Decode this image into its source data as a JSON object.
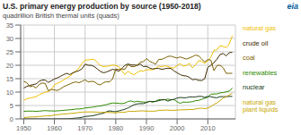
{
  "chart_data": {
    "type": "line",
    "title": "U.S. primary energy production by source (1950-2018)",
    "subtitle": "quadrillion British thermal units (quads)",
    "annotations": [
      "eia"
    ],
    "x": [
      1950,
      1951,
      1952,
      1953,
      1954,
      1955,
      1956,
      1957,
      1958,
      1959,
      1960,
      1961,
      1962,
      1963,
      1964,
      1965,
      1966,
      1967,
      1968,
      1969,
      1970,
      1971,
      1972,
      1973,
      1974,
      1975,
      1976,
      1977,
      1978,
      1979,
      1980,
      1981,
      1982,
      1983,
      1984,
      1985,
      1986,
      1987,
      1988,
      1989,
      1990,
      1991,
      1992,
      1993,
      1994,
      1995,
      1996,
      1997,
      1998,
      1999,
      2000,
      2001,
      2002,
      2003,
      2004,
      2005,
      2006,
      2007,
      2008,
      2009,
      2010,
      2011,
      2012,
      2013,
      2014,
      2015,
      2016,
      2017,
      2018
    ],
    "series": [
      {
        "name": "natural gas",
        "color": "#f0c000",
        "values": [
          6.97,
          7.5,
          7.8,
          8.0,
          8.3,
          9.0,
          9.5,
          10.0,
          10.2,
          11.0,
          12.66,
          13.3,
          13.8,
          14.5,
          15.3,
          15.8,
          17.0,
          17.9,
          19.0,
          20.7,
          21.9,
          22.0,
          22.2,
          22.2,
          21.0,
          19.9,
          19.5,
          19.6,
          19.8,
          20.1,
          19.9,
          19.5,
          18.0,
          16.5,
          17.8,
          16.9,
          16.5,
          17.3,
          18.0,
          17.8,
          18.4,
          18.3,
          18.4,
          18.8,
          19.7,
          19.5,
          19.8,
          19.6,
          19.1,
          19.0,
          19.9,
          20.6,
          19.7,
          19.9,
          20.7,
          19.0,
          20.2,
          21.7,
          21.5,
          20.7,
          21.7,
          23.0,
          25.6,
          25.7,
          27.3,
          27.0,
          26.6,
          28.0,
          31.0
        ]
      },
      {
        "name": "crude oil",
        "color": "#3d2b00",
        "values": [
          11.5,
          12.1,
          12.5,
          12.8,
          13.0,
          14.0,
          14.5,
          14.5,
          13.6,
          14.2,
          14.9,
          15.3,
          15.9,
          16.5,
          17.0,
          16.5,
          17.2,
          17.6,
          18.0,
          18.7,
          20.4,
          20.0,
          20.0,
          19.5,
          18.6,
          17.7,
          17.2,
          17.5,
          18.0,
          18.5,
          18.2,
          17.8,
          18.8,
          20.0,
          20.5,
          20.1,
          20.1,
          20.0,
          20.5,
          19.5,
          19.6,
          19.0,
          18.6,
          18.8,
          18.8,
          18.5,
          18.7,
          18.9,
          18.8,
          17.9,
          17.2,
          16.5,
          16.1,
          16.0,
          15.5,
          14.6,
          14.8,
          14.4,
          14.3,
          15.0,
          19.2,
          20.0,
          21.0,
          22.3,
          24.0,
          24.4,
          23.5,
          24.7,
          24.8
        ]
      },
      {
        "name": "coal",
        "color": "#7a6000",
        "values": [
          14.0,
          13.5,
          12.0,
          12.3,
          11.5,
          12.8,
          13.4,
          13.2,
          10.5,
          11.0,
          10.8,
          10.6,
          11.2,
          12.0,
          12.5,
          13.0,
          13.5,
          13.8,
          13.5,
          14.0,
          14.6,
          13.8,
          14.0,
          13.9,
          13.0,
          12.7,
          13.5,
          13.9,
          13.8,
          15.0,
          18.6,
          18.4,
          18.6,
          18.5,
          20.3,
          19.5,
          19.5,
          20.0,
          21.2,
          21.3,
          22.5,
          21.5,
          21.0,
          20.4,
          22.2,
          22.2,
          22.7,
          23.3,
          23.4,
          23.0,
          22.7,
          23.1,
          22.7,
          22.3,
          22.7,
          23.2,
          23.8,
          23.5,
          22.4,
          21.2,
          22.1,
          21.9,
          18.0,
          19.9,
          20.0,
          19.1,
          17.0,
          17.0,
          17.0
        ]
      },
      {
        "name": "renewables",
        "color": "#2e8b00",
        "values": [
          2.8,
          2.9,
          2.9,
          2.9,
          2.8,
          2.9,
          3.0,
          3.1,
          3.0,
          3.0,
          2.93,
          3.0,
          3.1,
          3.2,
          3.3,
          3.4,
          3.5,
          3.7,
          3.7,
          3.8,
          4.1,
          4.2,
          4.3,
          4.5,
          4.7,
          4.8,
          5.1,
          5.3,
          5.7,
          5.9,
          5.9,
          5.8,
          5.7,
          5.9,
          6.5,
          6.7,
          6.3,
          6.6,
          6.4,
          6.3,
          6.2,
          6.6,
          6.2,
          6.6,
          7.2,
          7.1,
          7.1,
          7.4,
          7.1,
          7.2,
          6.4,
          5.8,
          6.3,
          6.2,
          6.3,
          6.4,
          6.8,
          6.9,
          7.3,
          7.7,
          8.1,
          9.2,
          9.3,
          9.3,
          9.7,
          9.8,
          10.1,
          10.4,
          11.5
        ]
      },
      {
        "name": "nuclear",
        "color": "#1a3a1a",
        "values": [
          0.0,
          0.0,
          0.0,
          0.0,
          0.0,
          0.0,
          0.0,
          0.0,
          0.0,
          0.0,
          0.01,
          0.02,
          0.03,
          0.04,
          0.05,
          0.1,
          0.2,
          0.3,
          0.4,
          0.6,
          0.9,
          1.0,
          1.1,
          1.3,
          1.6,
          1.9,
          2.1,
          2.7,
          3.0,
          2.8,
          2.7,
          3.0,
          3.3,
          3.6,
          4.1,
          4.7,
          5.3,
          5.6,
          5.7,
          5.7,
          6.1,
          6.5,
          6.5,
          6.5,
          6.8,
          7.1,
          7.2,
          6.6,
          7.1,
          7.3,
          7.8,
          8.0,
          7.9,
          7.9,
          8.2,
          8.2,
          8.2,
          8.4,
          8.4,
          8.0,
          8.4,
          8.3,
          8.0,
          7.9,
          8.3,
          8.3,
          8.3,
          8.4,
          8.4
        ]
      },
      {
        "name": "natural gas\nplant liquids",
        "color": "#c8a800",
        "values": [
          0.5,
          0.6,
          0.7,
          0.7,
          0.8,
          0.9,
          1.0,
          1.1,
          1.1,
          1.2,
          1.46,
          1.6,
          1.7,
          1.8,
          1.9,
          2.0,
          2.1,
          2.2,
          2.4,
          2.5,
          2.6,
          2.6,
          2.6,
          2.6,
          2.5,
          2.4,
          2.5,
          2.4,
          2.4,
          2.3,
          2.2,
          2.5,
          2.5,
          2.5,
          2.8,
          2.8,
          2.8,
          2.9,
          3.0,
          3.0,
          2.9,
          2.9,
          2.9,
          2.9,
          3.2,
          3.2,
          3.3,
          3.3,
          3.2,
          3.2,
          3.3,
          3.4,
          3.4,
          3.4,
          3.5,
          3.5,
          3.7,
          3.9,
          4.0,
          3.8,
          4.1,
          4.5,
          5.4,
          6.0,
          6.8,
          7.8,
          8.2,
          9.0,
          9.5
        ]
      }
    ],
    "xlim": [
      1949,
      2019
    ],
    "xticks": [
      1950,
      1960,
      1970,
      1980,
      1990,
      2000,
      2010
    ],
    "ylim": [
      0,
      35
    ],
    "yticks": [
      0,
      5,
      10,
      15,
      20,
      25,
      30,
      35
    ],
    "grid": true
  }
}
